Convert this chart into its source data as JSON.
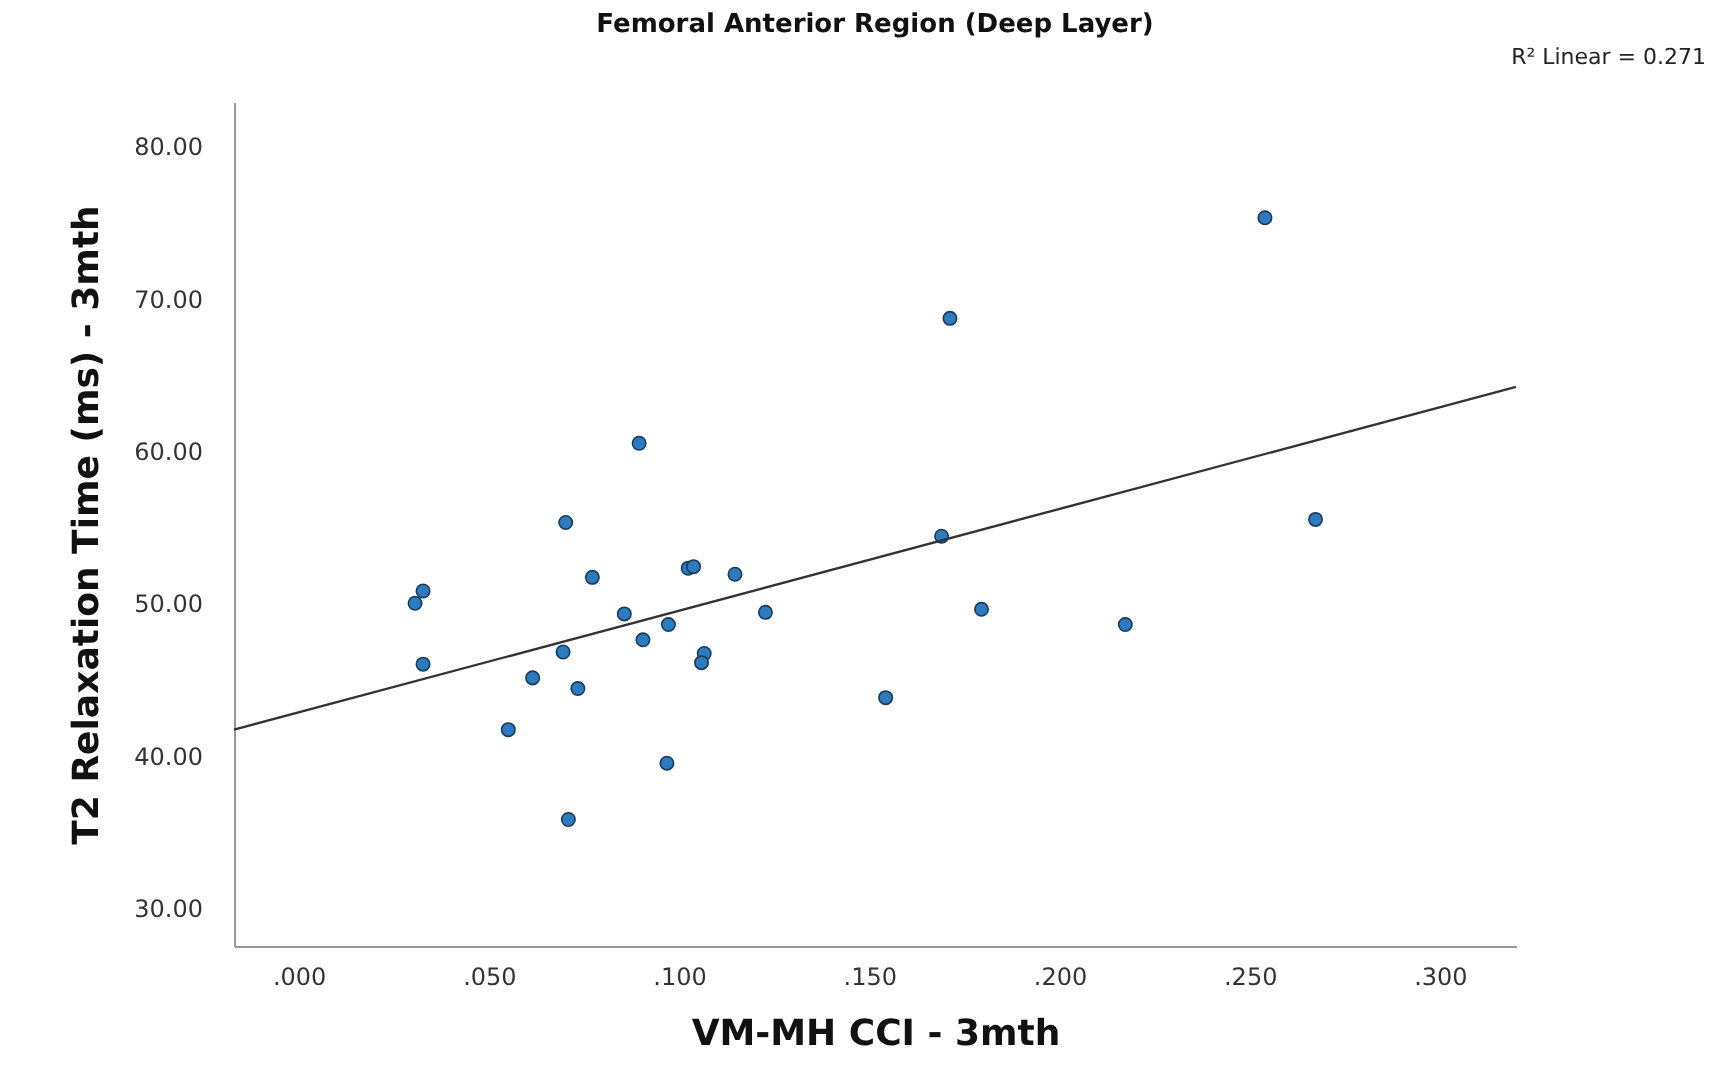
{
  "chart_data": {
    "type": "scatter",
    "title": "Femoral Anterior Region (Deep Layer)",
    "xlabel": "VM-MH CCI - 3mth",
    "ylabel": "T2 Relaxation Time (ms) - 3mth",
    "annotations": [
      "R² Linear = 0.271"
    ],
    "xlim": [
      -0.017,
      0.32
    ],
    "xticks": [
      {
        "value": 0,
        "label": ".000"
      },
      {
        "value": 0.05,
        "label": ".050"
      },
      {
        "value": 0.1,
        "label": ".100"
      },
      {
        "value": 0.15,
        "label": ".150"
      },
      {
        "value": 0.2,
        "label": ".200"
      },
      {
        "value": 0.25,
        "label": ".250"
      },
      {
        "value": 0.3,
        "label": ".300"
      }
    ],
    "ylim": [
      27.5,
      82.9
    ],
    "yticks": [
      {
        "value": 30,
        "label": "30.00"
      },
      {
        "value": 40,
        "label": "40.00"
      },
      {
        "value": 50,
        "label": "50.00"
      },
      {
        "value": 60,
        "label": "60.00"
      },
      {
        "value": 70,
        "label": "70.00"
      },
      {
        "value": 80,
        "label": "80.00"
      }
    ],
    "grid": false,
    "series": [
      {
        "color": "#2b7bc0",
        "marker": "circle",
        "x": [
          0.0306,
          0.0327,
          0.0327,
          0.0702,
          0.0772,
          0.0856,
          0.0905,
          0.0972,
          0.1024,
          0.1038,
          0.1147,
          0.1227,
          0.0695,
          0.0615,
          0.0734,
          0.0551,
          0.0968,
          0.0709,
          0.1066,
          0.1059,
          0.0895,
          0.254,
          0.1712,
          0.169,
          0.2673,
          0.1795,
          0.2173,
          0.1543
        ],
        "values": [
          50.0,
          50.8,
          46.0,
          55.3,
          51.7,
          49.3,
          47.6,
          48.6,
          52.3,
          52.4,
          51.9,
          49.4,
          46.8,
          45.1,
          44.4,
          41.7,
          39.5,
          35.8,
          46.7,
          46.1,
          60.5,
          75.3,
          68.7,
          54.4,
          55.5,
          49.6,
          48.6,
          43.8
        ]
      },
      {
        "type": "line",
        "marker": "none",
        "color": "#333333",
        "x": [
          -0.017,
          0.32
        ],
        "values": [
          41.7,
          64.2
        ]
      }
    ]
  }
}
